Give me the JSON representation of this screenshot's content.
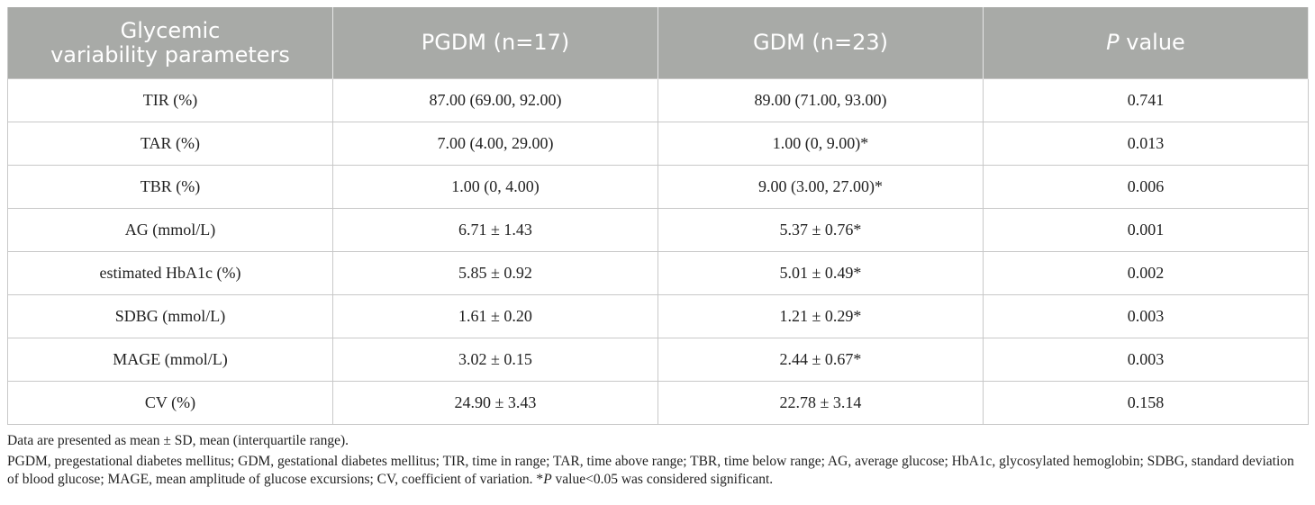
{
  "table": {
    "headers": {
      "col1_line1": "Glycemic",
      "col1_line2": "variability parameters",
      "col2": "PGDM (n=17)",
      "col3": "GDM (n=23)",
      "col4_italic": "P",
      "col4_rest": " value"
    },
    "rows": [
      {
        "param": "TIR (%)",
        "pgdm": "87.00 (69.00, 92.00)",
        "gdm": "89.00 (71.00, 93.00)",
        "p": "0.741"
      },
      {
        "param": "TAR (%)",
        "pgdm": "7.00 (4.00, 29.00)",
        "gdm": "1.00 (0, 9.00)*",
        "p": "0.013"
      },
      {
        "param": "TBR (%)",
        "pgdm": "1.00 (0, 4.00)",
        "gdm": "9.00 (3.00, 27.00)*",
        "p": "0.006"
      },
      {
        "param": "AG (mmol/L)",
        "pgdm": "6.71 ± 1.43",
        "gdm": "5.37 ± 0.76*",
        "p": "0.001"
      },
      {
        "param": "estimated HbA1c (%)",
        "pgdm": "5.85 ± 0.92",
        "gdm": "5.01 ± 0.49*",
        "p": "0.002"
      },
      {
        "param": "SDBG (mmol/L)",
        "pgdm": "1.61 ± 0.20",
        "gdm": "1.21 ± 0.29*",
        "p": "0.003"
      },
      {
        "param": "MAGE (mmol/L)",
        "pgdm": "3.02 ± 0.15",
        "gdm": "2.44 ± 0.67*",
        "p": "0.003"
      },
      {
        "param": "CV (%)",
        "pgdm": "24.90 ± 3.43",
        "gdm": "22.78 ± 3.14",
        "p": "0.158"
      }
    ]
  },
  "footnotes": {
    "line1": "Data are presented as mean ± SD, mean (interquartile range).",
    "line2_part1": "PGDM, pregestational diabetes mellitus; GDM, gestational diabetes mellitus; TIR, time in range; TAR, time above range; TBR, time below range; AG, average glucose; HbA1c, glycosylated hemoglobin; SDBG, standard deviation of blood glucose; MAGE, mean amplitude of glucose excursions; CV, coefficient of variation. *",
    "line2_italic": "P",
    "line2_part2": " value<0.05 was considered significant."
  }
}
